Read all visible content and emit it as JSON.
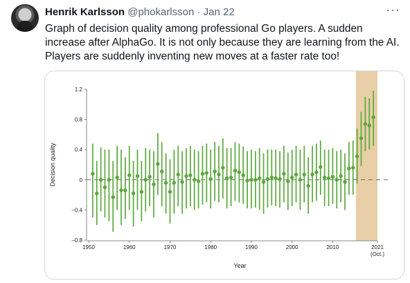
{
  "tweet": {
    "author_name": "Henrik Karlsson",
    "handle": "@phokarlsson",
    "separator": "·",
    "date": "Jan 22",
    "more_icon": "more-horizontal-icon",
    "text_lines": [
      "Graph of decision quality among professional Go players. A sudden",
      "increase after AlphaGo. It is not only because they are learning from the AI.",
      "Players are suddenly inventing new moves at a faster rate too!"
    ]
  },
  "chart_data": {
    "type": "scatter",
    "xlabel": "Year",
    "ylabel": "Decision quality",
    "ylim": [
      -0.8,
      1.2
    ],
    "xlim": [
      1950,
      2021
    ],
    "yticks": [
      "1.2",
      "0.8",
      "0.4",
      "0",
      "−0.4",
      "−0.8"
    ],
    "ytick_values": [
      1.2,
      0.8,
      0.4,
      0,
      -0.4,
      -0.8
    ],
    "xticks": [
      "1950",
      "1960",
      "1970",
      "1980",
      "1990",
      "2000",
      "2010",
      "2021"
    ],
    "xtick_values": [
      1950,
      1960,
      1970,
      1980,
      1990,
      2000,
      2010,
      2021
    ],
    "xtick_sublabel": "(Oct.)",
    "highlight_region": {
      "from": 2015.7,
      "to": 2021,
      "color": "#e8cfa8"
    },
    "reference_line": 0,
    "series_color": "#5aa83b",
    "points": [
      {
        "x": 1951,
        "y": 0.08,
        "lo": -0.5,
        "hi": 0.48
      },
      {
        "x": 1952,
        "y": -0.18,
        "lo": -0.6,
        "hi": 0.25
      },
      {
        "x": 1953,
        "y": 0.0,
        "lo": -0.42,
        "hi": 0.43
      },
      {
        "x": 1954,
        "y": -0.1,
        "lo": -0.5,
        "hi": 0.4
      },
      {
        "x": 1955,
        "y": 0.0,
        "lo": -0.55,
        "hi": 0.4
      },
      {
        "x": 1956,
        "y": -0.23,
        "lo": -0.69,
        "hi": 0.25
      },
      {
        "x": 1957,
        "y": 0.03,
        "lo": -0.4,
        "hi": 0.45
      },
      {
        "x": 1958,
        "y": -0.14,
        "lo": -0.6,
        "hi": 0.4
      },
      {
        "x": 1959,
        "y": -0.14,
        "lo": -0.52,
        "hi": 0.3
      },
      {
        "x": 1960,
        "y": 0.06,
        "lo": -0.4,
        "hi": 0.45
      },
      {
        "x": 1961,
        "y": -0.18,
        "lo": -0.62,
        "hi": 0.25
      },
      {
        "x": 1962,
        "y": 0.05,
        "lo": -0.4,
        "hi": 0.4
      },
      {
        "x": 1963,
        "y": -0.16,
        "lo": -0.55,
        "hi": 0.25
      },
      {
        "x": 1964,
        "y": 0.0,
        "lo": -0.42,
        "hi": 0.42
      },
      {
        "x": 1965,
        "y": 0.04,
        "lo": -0.35,
        "hi": 0.4
      },
      {
        "x": 1966,
        "y": -0.06,
        "lo": -0.5,
        "hi": 0.38
      },
      {
        "x": 1967,
        "y": 0.21,
        "lo": -0.2,
        "hi": 0.62
      },
      {
        "x": 1968,
        "y": 0.11,
        "lo": -0.35,
        "hi": 0.5
      },
      {
        "x": 1969,
        "y": -0.04,
        "lo": -0.45,
        "hi": 0.35
      },
      {
        "x": 1970,
        "y": -0.16,
        "lo": -0.58,
        "hi": 0.27
      },
      {
        "x": 1971,
        "y": -0.04,
        "lo": -0.45,
        "hi": 0.4
      },
      {
        "x": 1972,
        "y": 0.07,
        "lo": -0.35,
        "hi": 0.45
      },
      {
        "x": 1973,
        "y": -0.03,
        "lo": -0.45,
        "hi": 0.38
      },
      {
        "x": 1974,
        "y": 0.05,
        "lo": -0.38,
        "hi": 0.42
      },
      {
        "x": 1975,
        "y": 0.06,
        "lo": -0.35,
        "hi": 0.45
      },
      {
        "x": 1976,
        "y": 0.0,
        "lo": -0.4,
        "hi": 0.4
      },
      {
        "x": 1977,
        "y": -0.02,
        "lo": -0.38,
        "hi": 0.38
      },
      {
        "x": 1978,
        "y": 0.08,
        "lo": -0.33,
        "hi": 0.45
      },
      {
        "x": 1979,
        "y": 0.09,
        "lo": -0.3,
        "hi": 0.48
      },
      {
        "x": 1980,
        "y": 0.01,
        "lo": -0.38,
        "hi": 0.4
      },
      {
        "x": 1981,
        "y": 0.11,
        "lo": -0.28,
        "hi": 0.5
      },
      {
        "x": 1982,
        "y": 0.07,
        "lo": -0.3,
        "hi": 0.45
      },
      {
        "x": 1983,
        "y": 0.16,
        "lo": -0.25,
        "hi": 0.55
      },
      {
        "x": 1984,
        "y": 0.02,
        "lo": -0.38,
        "hi": 0.42
      },
      {
        "x": 1985,
        "y": 0.03,
        "lo": -0.35,
        "hi": 0.42
      },
      {
        "x": 1986,
        "y": 0.12,
        "lo": -0.28,
        "hi": 0.5
      },
      {
        "x": 1987,
        "y": 0.1,
        "lo": -0.3,
        "hi": 0.48
      },
      {
        "x": 1988,
        "y": 0.06,
        "lo": -0.32,
        "hi": 0.44
      },
      {
        "x": 1989,
        "y": -0.01,
        "lo": -0.38,
        "hi": 0.38
      },
      {
        "x": 1990,
        "y": 0.0,
        "lo": -0.38,
        "hi": 0.4
      },
      {
        "x": 1991,
        "y": 0.0,
        "lo": -0.37,
        "hi": 0.38
      },
      {
        "x": 1992,
        "y": 0.02,
        "lo": -0.4,
        "hi": 0.42
      },
      {
        "x": 1993,
        "y": -0.03,
        "lo": -0.45,
        "hi": 0.35
      },
      {
        "x": 1994,
        "y": 0.01,
        "lo": -0.37,
        "hi": 0.4
      },
      {
        "x": 1995,
        "y": 0.03,
        "lo": -0.34,
        "hi": 0.4
      },
      {
        "x": 1996,
        "y": 0.02,
        "lo": -0.35,
        "hi": 0.4
      },
      {
        "x": 1997,
        "y": 0.01,
        "lo": -0.37,
        "hi": 0.38
      },
      {
        "x": 1998,
        "y": 0.08,
        "lo": -0.3,
        "hi": 0.45
      },
      {
        "x": 1999,
        "y": -0.02,
        "lo": -0.4,
        "hi": 0.36
      },
      {
        "x": 2000,
        "y": 0.03,
        "lo": -0.35,
        "hi": 0.4
      },
      {
        "x": 2001,
        "y": 0.07,
        "lo": -0.3,
        "hi": 0.45
      },
      {
        "x": 2002,
        "y": 0.0,
        "lo": -0.4,
        "hi": 0.4
      },
      {
        "x": 2003,
        "y": 0.07,
        "lo": -0.3,
        "hi": 0.45
      },
      {
        "x": 2004,
        "y": -0.08,
        "lo": -0.45,
        "hi": 0.3
      },
      {
        "x": 2005,
        "y": 0.07,
        "lo": -0.3,
        "hi": 0.45
      },
      {
        "x": 2006,
        "y": 0.1,
        "lo": -0.28,
        "hi": 0.48
      },
      {
        "x": 2007,
        "y": 0.17,
        "lo": -0.2,
        "hi": 0.52
      },
      {
        "x": 2008,
        "y": 0.03,
        "lo": -0.35,
        "hi": 0.4
      },
      {
        "x": 2009,
        "y": 0.02,
        "lo": -0.35,
        "hi": 0.4
      },
      {
        "x": 2010,
        "y": 0.04,
        "lo": -0.32,
        "hi": 0.42
      },
      {
        "x": 2011,
        "y": 0.0,
        "lo": -0.38,
        "hi": 0.38
      },
      {
        "x": 2012,
        "y": 0.05,
        "lo": -0.3,
        "hi": 0.4
      },
      {
        "x": 2013,
        "y": -0.03,
        "lo": -0.4,
        "hi": 0.35
      },
      {
        "x": 2014,
        "y": 0.15,
        "lo": -0.2,
        "hi": 0.5
      },
      {
        "x": 2015,
        "y": 0.16,
        "lo": -0.2,
        "hi": 0.52
      },
      {
        "x": 2016,
        "y": 0.31,
        "lo": -0.05,
        "hi": 0.68
      },
      {
        "x": 2017,
        "y": 0.55,
        "lo": 0.18,
        "hi": 0.9
      },
      {
        "x": 2018,
        "y": 0.74,
        "lo": 0.38,
        "hi": 1.1
      },
      {
        "x": 2019,
        "y": 0.72,
        "lo": 0.4,
        "hi": 1.08
      },
      {
        "x": 2020,
        "y": 0.83,
        "lo": 0.45,
        "hi": 1.18
      }
    ]
  }
}
